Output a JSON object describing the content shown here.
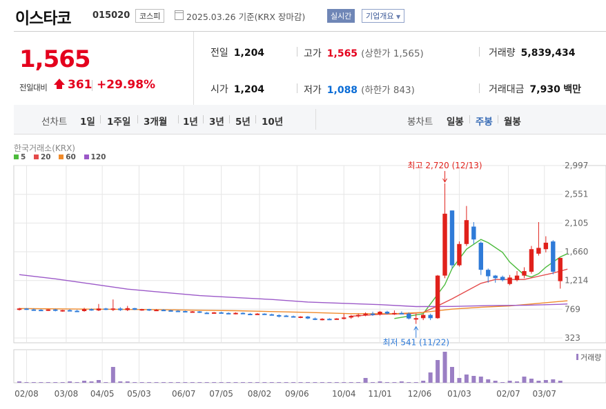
{
  "header": {
    "name": "이스타코",
    "code": "015020",
    "market": "코스피",
    "date": "2025.03.26",
    "date_note": "기준(KRX 장마감)",
    "realtime": "실시간",
    "overview": "기업개요"
  },
  "quote": {
    "price": "1,565",
    "compare_label": "전일대비",
    "change": "361",
    "change_rate": "+29.98%",
    "prev_close_label": "전일",
    "prev_close": "1,204",
    "high_label": "고가",
    "high": "1,565",
    "upper_limit": "(상한가 1,565)",
    "volume_label": "거래량",
    "volume": "5,839,434",
    "open_label": "시가",
    "open": "1,204",
    "low_label": "저가",
    "low": "1,088",
    "lower_limit": "(하한가 843)",
    "value_label": "거래대금",
    "value": "7,930",
    "value_unit": "백만"
  },
  "period_bar": {
    "line_chart_label": "선차트",
    "line_periods": [
      "1일",
      "1주일",
      "3개월",
      "1년",
      "3년",
      "5년",
      "10년"
    ],
    "candle_chart_label": "봉차트",
    "candle_periods": [
      "일봉",
      "주봉",
      "월봉"
    ],
    "selected_candle": "주봉"
  },
  "chart_source": "한국거래소(KRX)",
  "legend": [
    {
      "name": "5",
      "color": "#4cbb3c"
    },
    {
      "name": "20",
      "color": "#e44a4a"
    },
    {
      "name": "60",
      "color": "#f08a2a"
    },
    {
      "name": "120",
      "color": "#9b58c8"
    }
  ],
  "colors": {
    "up": "#e0211b",
    "down": "#2f7bd8",
    "volume": "#9b7fc4",
    "grid": "#e6e6e6"
  },
  "chart_data": {
    "type": "candlestick",
    "interval": "weekly",
    "y_ticks": [
      2997,
      2551,
      2105,
      1660,
      1214,
      769,
      323
    ],
    "y_tick_labels": [
      "2,997",
      "2,551",
      "2,105",
      "1,660",
      "1,214",
      "769",
      "323"
    ],
    "x_tick_labels": [
      "02/08",
      "03/08",
      "04/05",
      "05/03",
      "06/07",
      "07/05",
      "08/02",
      "09/06",
      "10/04",
      "11/01",
      "12/06",
      "01/03",
      "02/07",
      "03/07"
    ],
    "annotations": {
      "high": {
        "text": "최고 2,720 (12/13)",
        "value": 2720
      },
      "low": {
        "text": "최저 541 (11/22)",
        "value": 541
      }
    },
    "candles": [
      {
        "o": 770,
        "h": 790,
        "l": 750,
        "c": 780
      },
      {
        "o": 780,
        "h": 785,
        "l": 760,
        "c": 765
      },
      {
        "o": 765,
        "h": 780,
        "l": 745,
        "c": 760
      },
      {
        "o": 760,
        "h": 770,
        "l": 745,
        "c": 750
      },
      {
        "o": 750,
        "h": 770,
        "l": 740,
        "c": 765
      },
      {
        "o": 765,
        "h": 775,
        "l": 735,
        "c": 745
      },
      {
        "o": 745,
        "h": 760,
        "l": 730,
        "c": 755
      },
      {
        "o": 755,
        "h": 770,
        "l": 740,
        "c": 745
      },
      {
        "o": 745,
        "h": 760,
        "l": 725,
        "c": 735
      },
      {
        "o": 740,
        "h": 790,
        "l": 730,
        "c": 770
      },
      {
        "o": 770,
        "h": 780,
        "l": 745,
        "c": 755
      },
      {
        "o": 750,
        "h": 850,
        "l": 740,
        "c": 780
      },
      {
        "o": 780,
        "h": 790,
        "l": 755,
        "c": 765
      },
      {
        "o": 765,
        "h": 920,
        "l": 740,
        "c": 780
      },
      {
        "o": 780,
        "h": 800,
        "l": 740,
        "c": 755
      },
      {
        "o": 755,
        "h": 820,
        "l": 740,
        "c": 785
      },
      {
        "o": 785,
        "h": 790,
        "l": 755,
        "c": 760
      },
      {
        "o": 760,
        "h": 775,
        "l": 745,
        "c": 770
      },
      {
        "o": 770,
        "h": 775,
        "l": 740,
        "c": 750
      },
      {
        "o": 750,
        "h": 770,
        "l": 740,
        "c": 760
      },
      {
        "o": 760,
        "h": 770,
        "l": 745,
        "c": 752
      },
      {
        "o": 752,
        "h": 760,
        "l": 735,
        "c": 745
      },
      {
        "o": 745,
        "h": 755,
        "l": 730,
        "c": 740
      },
      {
        "o": 740,
        "h": 745,
        "l": 720,
        "c": 728
      },
      {
        "o": 728,
        "h": 740,
        "l": 715,
        "c": 735
      },
      {
        "o": 735,
        "h": 740,
        "l": 710,
        "c": 715
      },
      {
        "o": 715,
        "h": 725,
        "l": 700,
        "c": 710
      },
      {
        "o": 710,
        "h": 725,
        "l": 700,
        "c": 720
      },
      {
        "o": 720,
        "h": 730,
        "l": 705,
        "c": 710
      },
      {
        "o": 710,
        "h": 720,
        "l": 695,
        "c": 700
      },
      {
        "o": 700,
        "h": 720,
        "l": 690,
        "c": 712
      },
      {
        "o": 712,
        "h": 720,
        "l": 695,
        "c": 698
      },
      {
        "o": 698,
        "h": 710,
        "l": 680,
        "c": 688
      },
      {
        "o": 690,
        "h": 710,
        "l": 680,
        "c": 700
      },
      {
        "o": 700,
        "h": 705,
        "l": 685,
        "c": 690
      },
      {
        "o": 690,
        "h": 700,
        "l": 670,
        "c": 676
      },
      {
        "o": 676,
        "h": 690,
        "l": 640,
        "c": 670
      },
      {
        "o": 670,
        "h": 680,
        "l": 650,
        "c": 660
      },
      {
        "o": 660,
        "h": 670,
        "l": 640,
        "c": 645
      },
      {
        "o": 645,
        "h": 660,
        "l": 630,
        "c": 655
      },
      {
        "o": 655,
        "h": 665,
        "l": 615,
        "c": 625
      },
      {
        "o": 625,
        "h": 640,
        "l": 600,
        "c": 612
      },
      {
        "o": 612,
        "h": 630,
        "l": 595,
        "c": 620
      },
      {
        "o": 620,
        "h": 630,
        "l": 600,
        "c": 610
      },
      {
        "o": 610,
        "h": 630,
        "l": 605,
        "c": 625
      },
      {
        "o": 625,
        "h": 700,
        "l": 610,
        "c": 640
      },
      {
        "o": 640,
        "h": 680,
        "l": 620,
        "c": 665
      },
      {
        "o": 665,
        "h": 700,
        "l": 640,
        "c": 680
      },
      {
        "o": 680,
        "h": 720,
        "l": 660,
        "c": 700
      },
      {
        "o": 700,
        "h": 730,
        "l": 665,
        "c": 690
      },
      {
        "o": 690,
        "h": 740,
        "l": 670,
        "c": 730
      },
      {
        "o": 730,
        "h": 745,
        "l": 690,
        "c": 700
      },
      {
        "o": 700,
        "h": 750,
        "l": 680,
        "c": 710
      },
      {
        "o": 710,
        "h": 735,
        "l": 690,
        "c": 700
      },
      {
        "o": 700,
        "h": 720,
        "l": 610,
        "c": 625
      },
      {
        "o": 630,
        "h": 700,
        "l": 541,
        "c": 630
      },
      {
        "o": 630,
        "h": 700,
        "l": 600,
        "c": 680
      },
      {
        "o": 680,
        "h": 700,
        "l": 600,
        "c": 630
      },
      {
        "o": 630,
        "h": 1300,
        "l": 620,
        "c": 1290
      },
      {
        "o": 1290,
        "h": 2720,
        "l": 1250,
        "c": 2250
      },
      {
        "o": 2300,
        "h": 2300,
        "l": 1400,
        "c": 1450
      },
      {
        "o": 1450,
        "h": 1820,
        "l": 1430,
        "c": 1780
      },
      {
        "o": 1780,
        "h": 2370,
        "l": 1750,
        "c": 2150
      },
      {
        "o": 2050,
        "h": 2120,
        "l": 1780,
        "c": 1850
      },
      {
        "o": 1800,
        "h": 1820,
        "l": 1300,
        "c": 1380
      },
      {
        "o": 1380,
        "h": 1400,
        "l": 1180,
        "c": 1280
      },
      {
        "o": 1290,
        "h": 1300,
        "l": 1180,
        "c": 1250
      },
      {
        "o": 1270,
        "h": 1290,
        "l": 1200,
        "c": 1220
      },
      {
        "o": 1160,
        "h": 1300,
        "l": 1140,
        "c": 1260
      },
      {
        "o": 1220,
        "h": 1360,
        "l": 1200,
        "c": 1290
      },
      {
        "o": 1290,
        "h": 1420,
        "l": 1250,
        "c": 1360
      },
      {
        "o": 1350,
        "h": 1750,
        "l": 1320,
        "c": 1700
      },
      {
        "o": 1630,
        "h": 2120,
        "l": 1600,
        "c": 1720
      },
      {
        "o": 1700,
        "h": 1900,
        "l": 1650,
        "c": 1800
      },
      {
        "o": 1820,
        "h": 1840,
        "l": 1310,
        "c": 1350
      },
      {
        "o": 1204,
        "h": 1565,
        "l": 1088,
        "c": 1565
      }
    ],
    "volume": [
      2,
      1,
      1,
      1,
      1,
      1,
      1,
      2,
      1,
      3,
      2,
      4,
      1,
      23,
      2,
      2,
      1,
      1,
      1,
      1,
      1,
      1,
      1,
      1,
      1,
      1,
      1,
      1,
      1,
      1,
      1,
      1,
      1,
      1,
      1,
      1,
      1,
      1,
      1,
      1,
      1,
      1,
      1,
      1,
      1,
      1,
      1,
      1,
      7,
      1,
      2,
      1,
      1,
      2,
      1,
      1,
      3,
      15,
      33,
      45,
      23,
      7,
      12,
      10,
      9,
      5,
      3,
      1,
      3,
      2,
      9,
      6,
      3,
      4,
      5,
      3
    ],
    "moving_averages": {
      "5": [
        [
          52,
          625
        ],
        [
          56,
          700
        ],
        [
          58,
          1000
        ],
        [
          59,
          1150
        ],
        [
          60,
          1400
        ],
        [
          62,
          1700
        ],
        [
          64,
          1850
        ],
        [
          65,
          1800
        ],
        [
          67,
          1650
        ],
        [
          68,
          1500
        ],
        [
          69,
          1400
        ],
        [
          70,
          1300
        ],
        [
          71,
          1270
        ],
        [
          72,
          1320
        ],
        [
          73,
          1420
        ],
        [
          74,
          1500
        ],
        [
          75,
          1580
        ],
        [
          76,
          1630
        ]
      ],
      "20": [
        [
          46,
          660
        ],
        [
          50,
          690
        ],
        [
          54,
          700
        ],
        [
          56,
          720
        ],
        [
          58,
          820
        ],
        [
          60,
          930
        ],
        [
          62,
          1050
        ],
        [
          64,
          1170
        ],
        [
          66,
          1230
        ],
        [
          68,
          1230
        ],
        [
          70,
          1230
        ],
        [
          72,
          1280
        ],
        [
          74,
          1330
        ],
        [
          76,
          1390
        ]
      ],
      "60": [
        [
          0,
          780
        ],
        [
          10,
          770
        ],
        [
          20,
          760
        ],
        [
          30,
          745
        ],
        [
          40,
          720
        ],
        [
          46,
          700
        ],
        [
          52,
          700
        ],
        [
          56,
          720
        ],
        [
          60,
          770
        ],
        [
          64,
          800
        ],
        [
          68,
          820
        ],
        [
          72,
          860
        ],
        [
          76,
          900
        ]
      ],
      "120": [
        [
          0,
          1305
        ],
        [
          5,
          1240
        ],
        [
          10,
          1160
        ],
        [
          15,
          1080
        ],
        [
          20,
          1030
        ],
        [
          25,
          980
        ],
        [
          30,
          950
        ],
        [
          35,
          920
        ],
        [
          40,
          880
        ],
        [
          45,
          860
        ],
        [
          50,
          840
        ],
        [
          55,
          810
        ],
        [
          60,
          812
        ],
        [
          65,
          825
        ],
        [
          70,
          830
        ],
        [
          75,
          845
        ],
        [
          76,
          850
        ]
      ]
    }
  },
  "volume_label": "거래량"
}
